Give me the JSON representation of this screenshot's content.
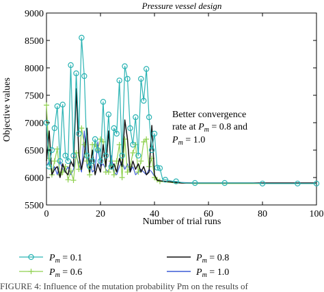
{
  "chart_data": {
    "type": "line",
    "title": "Pressure vessel design",
    "xlabel": "Number of trial runs",
    "ylabel": "Objective values",
    "xlim": [
      0,
      100
    ],
    "ylim": [
      5500,
      9000
    ],
    "xticks": [
      "0",
      "20",
      "40",
      "60",
      "80",
      "100"
    ],
    "yticks": [
      "5500",
      "6000",
      "6500",
      "7000",
      "7500",
      "8000",
      "8500",
      "9000"
    ],
    "grid": false,
    "legend_placement": "below",
    "annotation": {
      "line1": "Better convergence",
      "line2_prefix": "rate at ",
      "line2_var": "P",
      "line2_sub": "m",
      "line2_suffix": " = 0.8 and",
      "line3_var": "P",
      "line3_sub": "m",
      "line3_suffix": " = 1.0"
    },
    "series": [
      {
        "name": "Pm = 0.1",
        "label_var": "P",
        "label_sub": "m",
        "label_val": " = 0.1",
        "color": "#2ab3b3",
        "marker": "circle",
        "x": [
          0,
          1,
          2,
          3,
          4,
          5,
          6,
          7,
          8,
          9,
          10,
          11,
          12,
          13,
          14,
          15,
          16,
          17,
          18,
          19,
          20,
          21,
          22,
          23,
          24,
          25,
          26,
          27,
          28,
          29,
          30,
          31,
          32,
          33,
          34,
          35,
          36,
          37,
          38,
          39,
          40,
          41,
          42,
          43,
          44,
          45,
          46,
          47,
          48,
          49,
          50,
          52,
          55,
          58,
          60,
          63,
          66,
          70,
          73,
          76,
          80,
          83,
          86,
          90,
          93,
          96,
          100
        ],
        "y": [
          7000,
          6200,
          6500,
          6900,
          7300,
          6300,
          7330,
          6400,
          6300,
          8050,
          6400,
          7900,
          6800,
          8550,
          7850,
          6400,
          6200,
          6300,
          6700,
          6500,
          6300,
          7380,
          6400,
          7150,
          6200,
          6900,
          6800,
          7770,
          6400,
          8030,
          7800,
          6900,
          6600,
          7100,
          6400,
          7800,
          7400,
          7980,
          7100,
          6500,
          6800,
          6180,
          6170,
          5970,
          5960,
          5950,
          5940,
          5930,
          5930,
          5920,
          5910,
          5900,
          5900,
          5900,
          5900,
          5900,
          5900,
          5900,
          5900,
          5900,
          5890,
          5890,
          5890,
          5890,
          5890,
          5890,
          5890
        ]
      },
      {
        "name": "Pm = 0.6",
        "label_var": "P",
        "label_sub": "m",
        "label_val": " = 0.6",
        "color": "#8fd14f",
        "marker": "plus",
        "x": [
          0,
          1,
          2,
          3,
          4,
          5,
          6,
          7,
          8,
          9,
          10,
          11,
          12,
          13,
          14,
          15,
          16,
          17,
          18,
          19,
          20,
          21,
          22,
          23,
          24,
          25,
          26,
          27,
          28,
          29,
          30,
          31,
          32,
          33,
          34,
          35,
          36,
          37,
          38,
          39,
          40,
          41,
          42,
          44,
          46,
          48,
          50,
          55,
          60,
          65,
          70,
          75,
          80,
          85,
          90,
          95,
          100
        ],
        "y": [
          7320,
          6350,
          6050,
          6300,
          6520,
          6050,
          6100,
          6200,
          5960,
          6120,
          5950,
          6450,
          6150,
          6900,
          6600,
          6300,
          6050,
          6600,
          6600,
          6500,
          6700,
          6650,
          6100,
          6100,
          6300,
          6050,
          6300,
          6600,
          6000,
          6700,
          6100,
          6200,
          6450,
          6600,
          6100,
          6300,
          6650,
          6700,
          6200,
          6350,
          6000,
          5960,
          5930,
          5920,
          5910,
          5900,
          5900,
          5890,
          5890,
          5890,
          5890,
          5890,
          5890,
          5890,
          5890,
          5890,
          5890
        ]
      },
      {
        "name": "Pm = 0.8",
        "label_var": "P",
        "label_sub": "m",
        "label_val": " = 0.8",
        "color": "#111111",
        "marker": "none",
        "x": [
          0,
          1,
          2,
          3,
          4,
          5,
          6,
          7,
          8,
          9,
          10,
          11,
          12,
          13,
          14,
          15,
          16,
          17,
          18,
          19,
          20,
          21,
          22,
          23,
          24,
          25,
          26,
          27,
          28,
          29,
          30,
          31,
          32,
          33,
          34,
          35,
          36,
          37,
          38,
          39,
          40,
          41,
          42,
          44,
          46,
          48,
          50,
          55,
          60,
          65,
          70,
          75,
          80,
          85,
          90,
          95,
          100
        ],
        "y": [
          6300,
          6850,
          6050,
          6150,
          6200,
          6000,
          6250,
          6100,
          6050,
          6300,
          6200,
          7620,
          6400,
          6150,
          6400,
          6900,
          6100,
          6500,
          6050,
          6250,
          6100,
          6600,
          6200,
          6850,
          6150,
          6250,
          6100,
          6350,
          6200,
          7050,
          6700,
          6100,
          6300,
          6150,
          6250,
          6100,
          6200,
          6050,
          6100,
          6950,
          6050,
          5950,
          5940,
          5930,
          5920,
          5910,
          5900,
          5900,
          5900,
          5900,
          5900,
          5900,
          5900,
          5900,
          5900,
          5900,
          5900
        ]
      },
      {
        "name": "Pm = 1.0",
        "label_var": "P",
        "label_sub": "m",
        "label_val": " = 1.0",
        "color": "#3b5bd6",
        "marker": "none",
        "x": [
          0,
          1,
          2,
          3,
          4,
          5,
          6,
          7,
          8,
          9,
          10,
          11,
          12,
          13,
          14,
          15,
          16,
          17,
          18,
          19,
          20,
          21,
          22,
          23,
          24,
          25,
          26,
          27,
          28,
          29,
          30,
          31,
          32,
          33,
          34,
          35,
          36,
          37,
          38,
          39,
          40,
          41,
          42,
          44,
          46,
          48,
          50,
          55,
          60,
          65,
          70,
          75,
          80,
          85,
          90,
          95,
          100
        ],
        "y": [
          6200,
          6300,
          6100,
          6200,
          6050,
          6300,
          6150,
          6100,
          6200,
          6050,
          6150,
          6400,
          6250,
          6100,
          6850,
          6200,
          6300,
          6100,
          6150,
          6650,
          6200,
          6250,
          6150,
          6100,
          6400,
          6100,
          6050,
          6200,
          6300,
          6150,
          6250,
          6100,
          6200,
          6050,
          6100,
          6150,
          6100,
          6050,
          6150,
          6100,
          6020,
          5960,
          5940,
          5930,
          5920,
          5910,
          5910,
          5900,
          5900,
          5900,
          5900,
          5900,
          5900,
          5900,
          5900,
          5900,
          5900
        ]
      }
    ]
  },
  "caption_fragment": "FIGURE 4: Influence of the mutation probability Pm on the results of"
}
